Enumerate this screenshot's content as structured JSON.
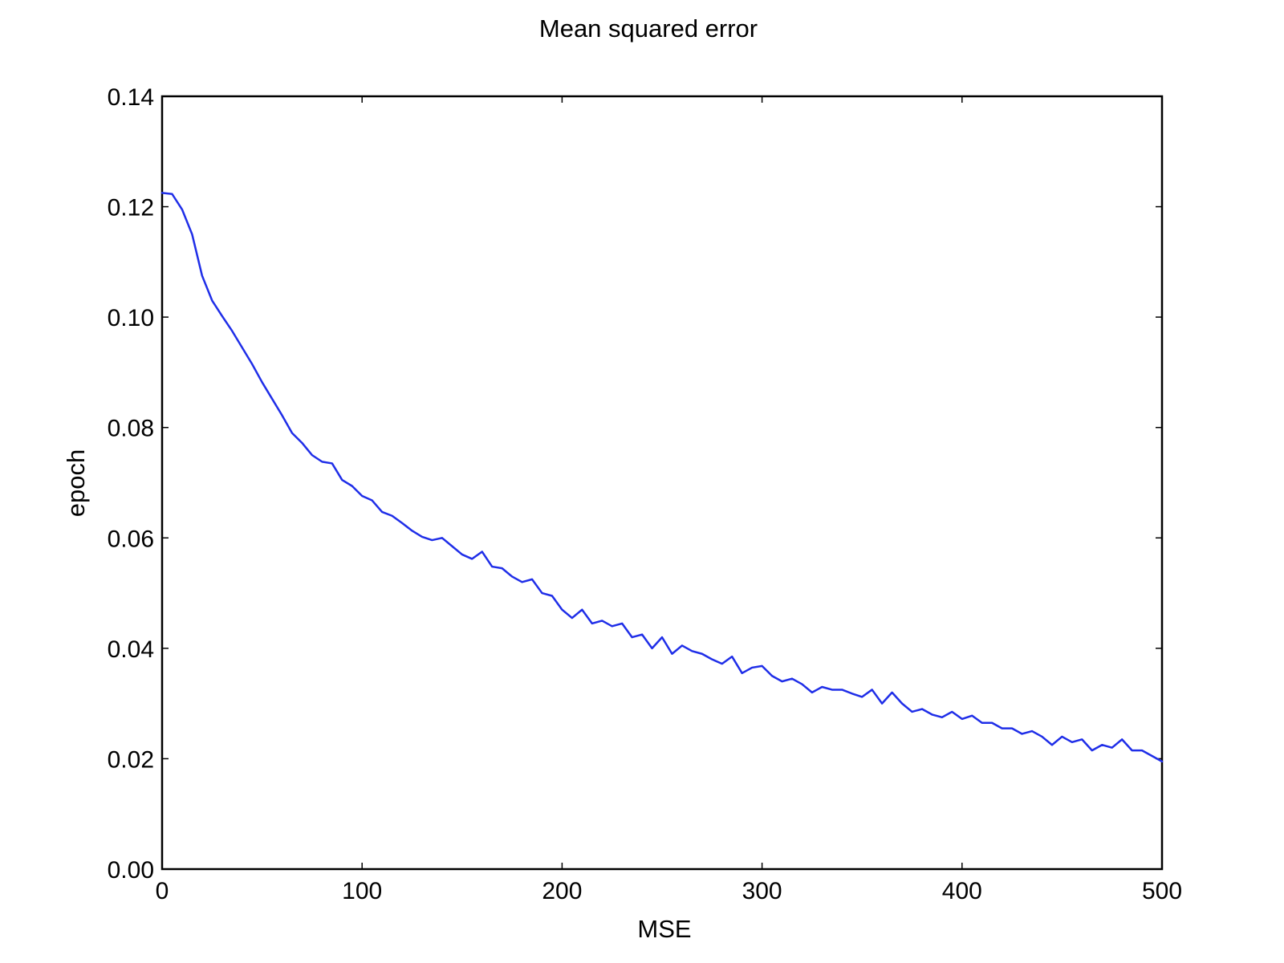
{
  "chart_data": {
    "type": "line",
    "title": "Mean squared error",
    "xlabel": "MSE",
    "ylabel": "epoch",
    "xlim": [
      0,
      500
    ],
    "ylim": [
      0,
      0.14
    ],
    "x_ticks": [
      0,
      100,
      200,
      300,
      400,
      500
    ],
    "y_ticks": [
      0.0,
      0.02,
      0.04,
      0.06,
      0.08,
      0.1,
      0.12,
      0.14
    ],
    "x_tick_labels": [
      "0",
      "100",
      "200",
      "300",
      "400",
      "500"
    ],
    "y_tick_labels": [
      "0.00",
      "0.02",
      "0.04",
      "0.06",
      "0.08",
      "0.10",
      "0.12",
      "0.14"
    ],
    "grid": false,
    "legend": "none",
    "line_color": "#1f2ee8",
    "series": [
      {
        "x": [
          0,
          5,
          10,
          15,
          20,
          25,
          30,
          35,
          40,
          45,
          50,
          55,
          60,
          65,
          70,
          75,
          80,
          85,
          90,
          95,
          100,
          105,
          110,
          115,
          120,
          125,
          130,
          135,
          140,
          145,
          150,
          155,
          160,
          165,
          170,
          175,
          180,
          185,
          190,
          195,
          200,
          205,
          210,
          215,
          220,
          225,
          230,
          235,
          240,
          245,
          250,
          255,
          260,
          265,
          270,
          275,
          280,
          285,
          290,
          295,
          300,
          305,
          310,
          315,
          320,
          325,
          330,
          335,
          340,
          345,
          350,
          355,
          360,
          365,
          370,
          375,
          380,
          385,
          390,
          395,
          400,
          405,
          410,
          415,
          420,
          425,
          430,
          435,
          440,
          445,
          450,
          455,
          460,
          465,
          470,
          475,
          480,
          485,
          490,
          495,
          500
        ],
        "values": [
          0.1225,
          0.1223,
          0.1195,
          0.115,
          0.1075,
          0.103,
          0.1002,
          0.0975,
          0.0945,
          0.0915,
          0.0882,
          0.0852,
          0.0822,
          0.079,
          0.0772,
          0.075,
          0.0738,
          0.0735,
          0.0705,
          0.0694,
          0.0676,
          0.0668,
          0.0647,
          0.064,
          0.0627,
          0.0613,
          0.0602,
          0.0596,
          0.06,
          0.0585,
          0.057,
          0.0562,
          0.0575,
          0.0548,
          0.0545,
          0.053,
          0.052,
          0.0525,
          0.05,
          0.0495,
          0.047,
          0.0455,
          0.047,
          0.0445,
          0.045,
          0.044,
          0.0445,
          0.042,
          0.0425,
          0.04,
          0.042,
          0.039,
          0.0405,
          0.0395,
          0.039,
          0.038,
          0.0372,
          0.0385,
          0.0355,
          0.0365,
          0.0368,
          0.035,
          0.034,
          0.0345,
          0.0335,
          0.032,
          0.033,
          0.0325,
          0.0325,
          0.0318,
          0.0312,
          0.0325,
          0.03,
          0.032,
          0.03,
          0.0285,
          0.029,
          0.028,
          0.0275,
          0.0285,
          0.0272,
          0.0278,
          0.0265,
          0.0265,
          0.0255,
          0.0255,
          0.0245,
          0.025,
          0.024,
          0.0225,
          0.024,
          0.023,
          0.0235,
          0.0215,
          0.0225,
          0.022,
          0.0235,
          0.0215,
          0.0215,
          0.0205,
          0.0195
        ]
      }
    ]
  }
}
